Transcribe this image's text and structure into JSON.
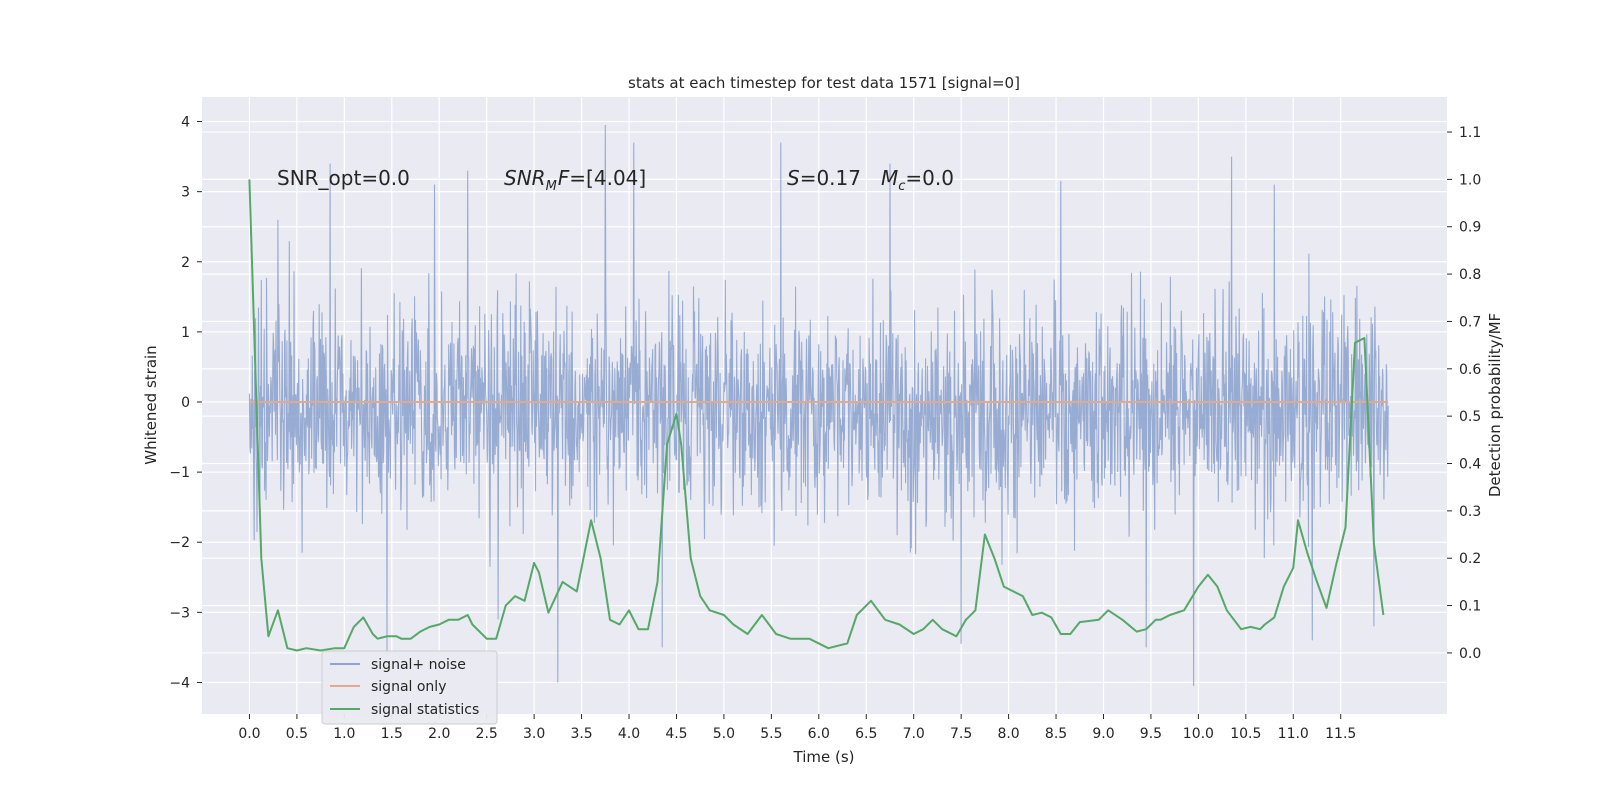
{
  "chart_data": {
    "type": "line",
    "title": "stats at each timestep for test data 1571 [signal=0]",
    "xlabel": "Time (s)",
    "ylabel": "Whitened strain",
    "y2label": "Detection probability/MF",
    "xlim": [
      -0.5,
      12.62
    ],
    "ylim": [
      -4.45,
      4.35
    ],
    "y2lim": [
      -0.129,
      1.174
    ],
    "x_ticks": [
      "0.0",
      "0.5",
      "1.0",
      "1.5",
      "2.0",
      "2.5",
      "3.0",
      "3.5",
      "4.0",
      "4.5",
      "5.0",
      "5.5",
      "6.0",
      "6.5",
      "7.0",
      "7.5",
      "8.0",
      "8.5",
      "9.0",
      "9.5",
      "10.0",
      "10.5",
      "11.0",
      "11.5"
    ],
    "y_ticks": [
      "4",
      "3",
      "2",
      "1",
      "0",
      "−1",
      "−2",
      "−3",
      "−4"
    ],
    "y2_ticks": [
      "1.1",
      "1.0",
      "0.9",
      "0.8",
      "0.7",
      "0.6",
      "0.5",
      "0.4",
      "0.3",
      "0.2",
      "0.1",
      "0.0"
    ],
    "grid": true,
    "legend_position": "lower-left",
    "annotations": [
      {
        "text": "SNR_opt=0.0"
      },
      {
        "base": "SNR",
        "sub": "M",
        "rest": "F=[4.04]"
      },
      {
        "base": "S",
        "rest": "=0.17"
      },
      {
        "base": "M",
        "sub": "c",
        "rest": "=0.0"
      }
    ],
    "series": [
      {
        "name": "signal+ noise",
        "axis": "left",
        "color": "#8fa5cf",
        "kind": "noise",
        "x_range": [
          0,
          12.0
        ],
        "envelope_upper_typical": 1.8,
        "envelope_lower_typical": -2.2,
        "peaks": [
          {
            "x": 0.3,
            "y": 2.6
          },
          {
            "x": 0.85,
            "y": 3.4
          },
          {
            "x": 1.45,
            "y": -3.6
          },
          {
            "x": 1.95,
            "y": 3.1
          },
          {
            "x": 2.3,
            "y": 3.3
          },
          {
            "x": 2.62,
            "y": -3.1
          },
          {
            "x": 3.25,
            "y": -4.0
          },
          {
            "x": 3.75,
            "y": 3.95
          },
          {
            "x": 4.05,
            "y": 3.7
          },
          {
            "x": 4.35,
            "y": -3.5
          },
          {
            "x": 5.6,
            "y": 3.7
          },
          {
            "x": 6.75,
            "y": 3.4
          },
          {
            "x": 7.5,
            "y": -3.45
          },
          {
            "x": 8.55,
            "y": 3.15
          },
          {
            "x": 9.45,
            "y": -3.5
          },
          {
            "x": 9.95,
            "y": -4.05
          },
          {
            "x": 10.35,
            "y": 3.5
          },
          {
            "x": 10.8,
            "y": 3.1
          },
          {
            "x": 11.2,
            "y": -3.4
          },
          {
            "x": 11.85,
            "y": -3.2
          }
        ]
      },
      {
        "name": "signal only",
        "axis": "left",
        "color": "#e3a98b",
        "x": [
          0,
          12.0
        ],
        "y": [
          0,
          0
        ]
      },
      {
        "name": "signal statistics",
        "axis": "right",
        "color": "#55a868",
        "x": [
          0,
          0.125,
          0.2,
          0.3,
          0.4,
          0.5,
          0.6,
          0.75,
          0.9,
          1.0,
          1.1,
          1.2,
          1.3,
          1.35,
          1.45,
          1.55,
          1.6,
          1.7,
          1.8,
          1.9,
          2.0,
          2.1,
          2.2,
          2.3,
          2.35,
          2.5,
          2.6,
          2.7,
          2.8,
          2.9,
          3.0,
          3.05,
          3.15,
          3.3,
          3.45,
          3.6,
          3.7,
          3.8,
          3.9,
          4.0,
          4.1,
          4.2,
          4.3,
          4.4,
          4.5,
          4.55,
          4.65,
          4.75,
          4.85,
          5.0,
          5.1,
          5.25,
          5.4,
          5.55,
          5.7,
          5.9,
          6.1,
          6.3,
          6.4,
          6.55,
          6.7,
          6.85,
          7.0,
          7.1,
          7.2,
          7.3,
          7.45,
          7.55,
          7.65,
          7.75,
          7.85,
          7.95,
          8.05,
          8.15,
          8.25,
          8.35,
          8.45,
          8.55,
          8.65,
          8.75,
          8.95,
          9.05,
          9.2,
          9.35,
          9.45,
          9.55,
          9.6,
          9.7,
          9.85,
          10.0,
          10.1,
          10.2,
          10.3,
          10.45,
          10.55,
          10.65,
          10.7,
          10.8,
          10.9,
          11.0,
          11.05,
          11.15,
          11.25,
          11.35,
          11.45,
          11.55,
          11.65,
          11.75,
          11.85,
          11.95
        ],
        "y": [
          1.0,
          0.2,
          0.035,
          0.09,
          0.01,
          0.005,
          0.01,
          0.005,
          0.01,
          0.01,
          0.055,
          0.075,
          0.04,
          0.03,
          0.035,
          0.035,
          0.03,
          0.03,
          0.045,
          0.055,
          0.06,
          0.07,
          0.07,
          0.08,
          0.06,
          0.03,
          0.03,
          0.1,
          0.12,
          0.11,
          0.19,
          0.17,
          0.085,
          0.15,
          0.13,
          0.28,
          0.2,
          0.07,
          0.06,
          0.09,
          0.05,
          0.05,
          0.15,
          0.44,
          0.505,
          0.44,
          0.2,
          0.12,
          0.09,
          0.08,
          0.06,
          0.04,
          0.08,
          0.04,
          0.03,
          0.03,
          0.01,
          0.02,
          0.08,
          0.11,
          0.07,
          0.06,
          0.04,
          0.05,
          0.07,
          0.05,
          0.035,
          0.07,
          0.09,
          0.25,
          0.2,
          0.14,
          0.13,
          0.12,
          0.08,
          0.085,
          0.075,
          0.04,
          0.04,
          0.065,
          0.07,
          0.09,
          0.07,
          0.045,
          0.05,
          0.07,
          0.07,
          0.08,
          0.09,
          0.14,
          0.165,
          0.14,
          0.09,
          0.05,
          0.055,
          0.05,
          0.06,
          0.075,
          0.14,
          0.18,
          0.28,
          0.21,
          0.15,
          0.095,
          0.185,
          0.265,
          0.655,
          0.665,
          0.23,
          0.08
        ]
      }
    ]
  }
}
